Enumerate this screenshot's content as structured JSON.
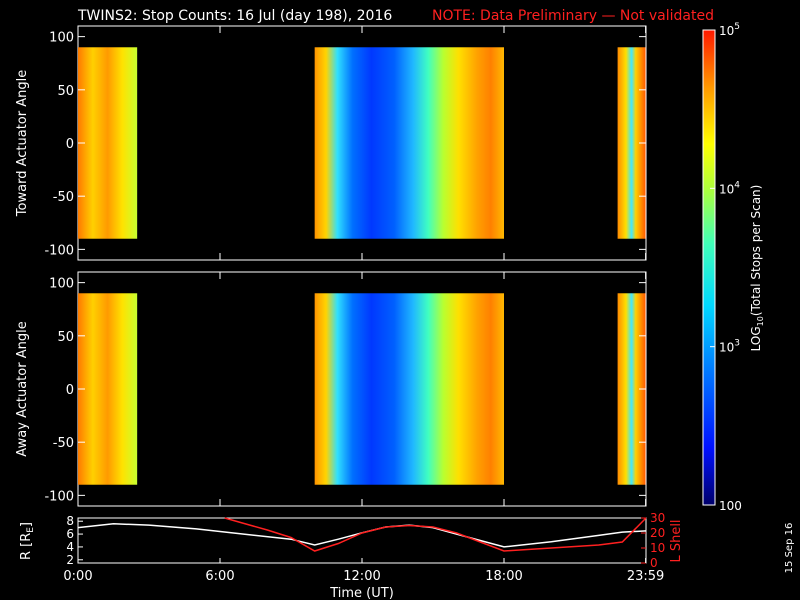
{
  "header": {
    "title": "TWINS2: Stop Counts: 16 Jul (day 198), 2016",
    "note": "NOTE: Data Preliminary — Not validated"
  },
  "stamp": "15 Sep 16",
  "colors": {
    "text": "#ffffff",
    "note": "#ff2020",
    "lshell": "#ff2020",
    "radius": "#ffffff"
  },
  "chart_data": [
    {
      "type": "heatmap",
      "name": "toward",
      "ylabel": "Toward Actuator Angle",
      "ylim": [
        -110,
        110
      ],
      "yticks": [
        100,
        50,
        0,
        -50,
        -100
      ],
      "data_ylim": [
        -90,
        90
      ],
      "xlim": [
        0,
        24
      ],
      "data_windows": [
        [
          0.0,
          2.5
        ],
        [
          10.0,
          18.0
        ],
        [
          22.8,
          24.0
        ]
      ]
    },
    {
      "type": "heatmap",
      "name": "away",
      "ylabel": "Away Actuator Angle",
      "ylim": [
        -110,
        110
      ],
      "yticks": [
        100,
        50,
        0,
        -50,
        -100
      ],
      "data_ylim": [
        -90,
        90
      ],
      "xlim": [
        0,
        24
      ],
      "data_windows": [
        [
          0.0,
          2.5
        ],
        [
          10.0,
          18.0
        ],
        [
          22.8,
          24.0
        ]
      ]
    },
    {
      "type": "line",
      "name": "orbit",
      "ylabel": "R [R",
      "ylabel_sub": "E",
      "ylabel_end": "]",
      "y2label": "L Shell",
      "xlabel": "Time (UT)",
      "xticks": [
        {
          "t": 0,
          "label": "0:00"
        },
        {
          "t": 6,
          "label": "6:00"
        },
        {
          "t": 12,
          "label": "12:00"
        },
        {
          "t": 18,
          "label": "18:00"
        },
        {
          "t": 23.983,
          "label": "23:59"
        }
      ],
      "xlim": [
        0,
        24
      ],
      "ylim": [
        1.5,
        8.5
      ],
      "yticks": [
        8,
        6,
        4,
        2
      ],
      "y2lim": [
        0,
        30
      ],
      "y2ticks": [
        30,
        20,
        10,
        0
      ],
      "series": [
        {
          "name": "R",
          "axis": "left",
          "x": [
            0,
            1.5,
            3,
            5,
            7,
            9,
            10,
            11,
            12,
            13,
            14,
            15,
            16,
            17,
            18,
            20,
            22,
            23,
            24
          ],
          "values": [
            7.0,
            7.6,
            7.4,
            6.8,
            6.0,
            5.2,
            4.3,
            5.2,
            6.2,
            7.1,
            7.4,
            7.0,
            6.0,
            5.0,
            4.0,
            4.8,
            5.8,
            6.3,
            6.5
          ]
        },
        {
          "name": "L Shell",
          "axis": "right",
          "x": [
            6.2,
            8,
            9,
            10,
            11,
            12,
            13,
            14,
            15,
            16,
            17,
            18,
            20,
            22,
            23,
            24
          ],
          "values": [
            30,
            22,
            17,
            8,
            13,
            20,
            24,
            25,
            24,
            20,
            14,
            8,
            10,
            12,
            14,
            30
          ]
        }
      ]
    }
  ],
  "colorbar": {
    "label_pre": "LOG",
    "label_sub": "10",
    "label_post": "(Total Stops per Scan)",
    "ticks": [
      {
        "base": "10",
        "exp": "5"
      },
      {
        "base": "10",
        "exp": "4"
      },
      {
        "base": "10",
        "exp": "3"
      },
      {
        "base": "100",
        "exp": ""
      }
    ]
  }
}
